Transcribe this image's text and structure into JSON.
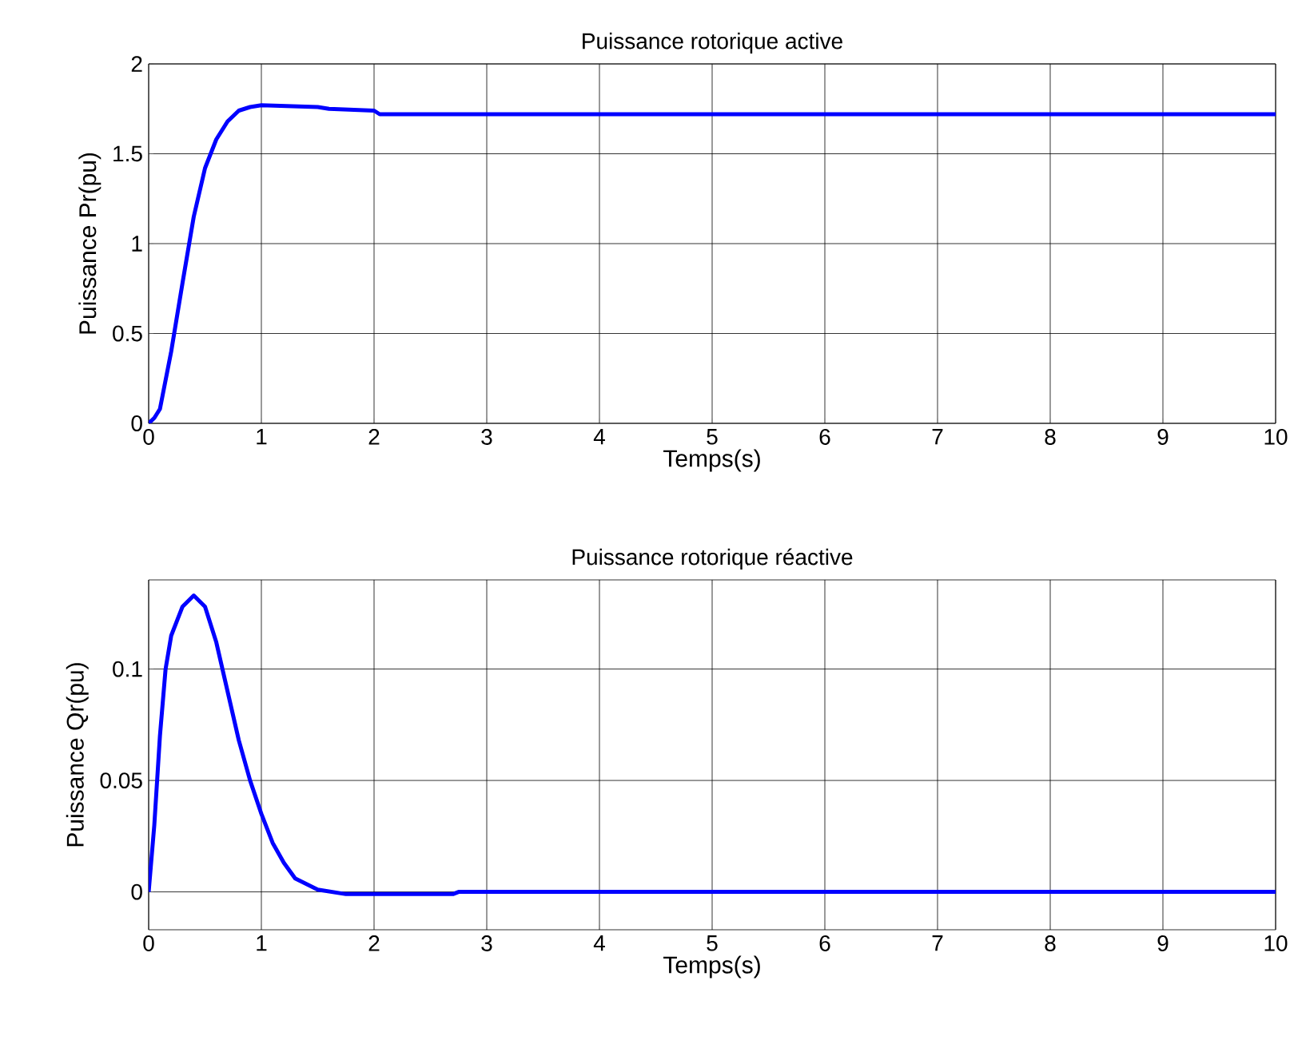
{
  "chart_data": [
    {
      "type": "line",
      "title": "Puissance rotorique active",
      "xlabel": "Temps(s)",
      "ylabel": "Puissance Pr(pu)",
      "xlim": [
        0,
        10
      ],
      "ylim": [
        0,
        2
      ],
      "xticks": [
        0,
        1,
        2,
        3,
        4,
        5,
        6,
        7,
        8,
        9,
        10
      ],
      "yticks": [
        0,
        0.5,
        1,
        1.5,
        2
      ],
      "grid": true,
      "line_style": "solid",
      "marker": "none",
      "series": [
        {
          "color": "#0000ff",
          "x": [
            0,
            0.05,
            0.1,
            0.2,
            0.3,
            0.4,
            0.5,
            0.6,
            0.7,
            0.8,
            0.9,
            1.0,
            1.5,
            1.6,
            2.0,
            2.05,
            10
          ],
          "values": [
            0,
            0.03,
            0.08,
            0.4,
            0.78,
            1.15,
            1.42,
            1.58,
            1.68,
            1.74,
            1.76,
            1.77,
            1.76,
            1.75,
            1.74,
            1.72,
            1.72
          ]
        }
      ]
    },
    {
      "type": "line",
      "title": "Puissance rotorique réactive",
      "xlabel": "Temps(s)",
      "ylabel": "Puissance Qr(pu)",
      "xlim": [
        0,
        10
      ],
      "ylim": [
        -0.017,
        0.14
      ],
      "xticks": [
        0,
        1,
        2,
        3,
        4,
        5,
        6,
        7,
        8,
        9,
        10
      ],
      "yticks": [
        0,
        0.05,
        0.1
      ],
      "grid": true,
      "line_style": "solid",
      "marker": "none",
      "series": [
        {
          "color": "#0000ff",
          "x": [
            0,
            0.05,
            0.1,
            0.15,
            0.2,
            0.3,
            0.4,
            0.5,
            0.6,
            0.7,
            0.8,
            0.9,
            1.0,
            1.1,
            1.2,
            1.3,
            1.5,
            1.75,
            2.7,
            2.75,
            10
          ],
          "values": [
            0,
            0.03,
            0.07,
            0.1,
            0.115,
            0.128,
            0.133,
            0.128,
            0.112,
            0.09,
            0.068,
            0.05,
            0.035,
            0.022,
            0.013,
            0.006,
            0.001,
            -0.001,
            -0.001,
            0,
            0
          ]
        }
      ]
    }
  ]
}
